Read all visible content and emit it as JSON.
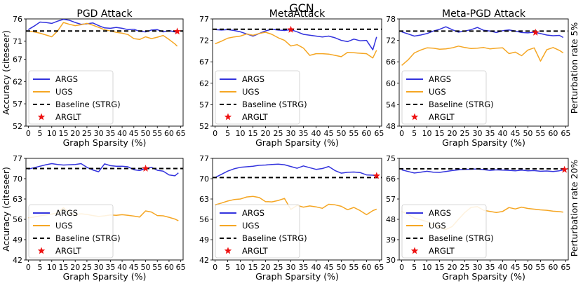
{
  "main_title": "GCN",
  "colors": {
    "args": "#3333dd",
    "ugs": "#f5a623",
    "baseline": "#000000",
    "arglt": "#ee1111"
  },
  "legend": [
    "ARGS",
    "UGS",
    "Baseline (STRG)",
    "ARGLT"
  ],
  "row_labels": [
    "Perturbation rate 5%",
    "Perturbation rate 20%"
  ],
  "chart_data": [
    {
      "type": "line",
      "row": 0,
      "col": 0,
      "title": "PGD Attack",
      "xlabel": "Graph Sparsity (%)",
      "ylabel": "Accuracy (citeseer)",
      "xlim": [
        0,
        65
      ],
      "ylim": [
        52,
        76
      ],
      "xticks": [
        0,
        5,
        10,
        15,
        20,
        25,
        30,
        35,
        40,
        45,
        50,
        55,
        60,
        65
      ],
      "yticks": [
        52,
        57,
        62,
        67,
        71,
        76
      ],
      "baseline": 73.3,
      "arglt": [
        63.5,
        73.2
      ],
      "series": [
        {
          "name": "ARGS",
          "x": [
            0,
            2.5,
            5,
            7.5,
            10,
            12.5,
            15,
            17.5,
            20,
            22.5,
            25,
            27.5,
            30,
            32.5,
            35,
            37.5,
            40,
            42.5,
            45,
            47.5,
            50,
            52.5,
            55,
            57.5,
            60,
            62.5,
            63.5
          ],
          "y": [
            73.6,
            74.4,
            75.3,
            75.2,
            75.0,
            75.5,
            75.9,
            75.7,
            75.2,
            74.8,
            74.9,
            75.1,
            74.5,
            74.0,
            73.9,
            74.1,
            73.9,
            73.6,
            73.7,
            73.2,
            73.1,
            73.5,
            73.6,
            73.1,
            73.4,
            73.1,
            73.2
          ]
        },
        {
          "name": "UGS",
          "x": [
            0,
            2.5,
            5,
            7.5,
            10,
            12.5,
            15,
            17.5,
            20,
            22.5,
            25,
            27.5,
            30,
            32.5,
            35,
            37.5,
            40,
            42.5,
            45,
            47.5,
            50,
            52.5,
            55,
            57.5,
            60,
            62.5,
            63.5
          ],
          "y": [
            73.3,
            73.1,
            72.8,
            72.4,
            72.0,
            73.3,
            75.2,
            74.8,
            74.5,
            74.7,
            75.0,
            74.6,
            74.1,
            73.6,
            73.3,
            73.0,
            72.8,
            72.5,
            71.6,
            71.4,
            72.0,
            71.6,
            71.9,
            72.3,
            71.4,
            70.4,
            69.9
          ]
        }
      ]
    },
    {
      "type": "line",
      "row": 0,
      "col": 1,
      "title": "MetaAttack",
      "xlabel": "Graph Sparsity (%)",
      "ylabel": "",
      "xlim": [
        0,
        65
      ],
      "ylim": [
        52,
        77
      ],
      "xticks": [
        0,
        5,
        10,
        15,
        20,
        25,
        30,
        35,
        40,
        45,
        50,
        55,
        60,
        65
      ],
      "yticks": [
        52,
        57,
        62,
        67,
        72,
        77
      ],
      "baseline": 74.6,
      "arglt": [
        30,
        74.5
      ],
      "series": [
        {
          "name": "ARGS",
          "x": [
            0,
            2.5,
            5,
            7.5,
            10,
            12.5,
            15,
            17.5,
            20,
            22.5,
            25,
            27.5,
            30,
            32.5,
            35,
            37.5,
            40,
            42.5,
            45,
            47.5,
            50,
            52.5,
            55,
            57.5,
            60,
            62.5,
            64
          ],
          "y": [
            74.5,
            74.4,
            74.5,
            74.3,
            74.0,
            73.5,
            73.0,
            73.6,
            74.2,
            74.6,
            74.4,
            74.3,
            74.5,
            74.0,
            73.4,
            73.2,
            73.0,
            72.8,
            73.0,
            72.6,
            72.0,
            71.7,
            72.3,
            71.9,
            72.0,
            69.8,
            72.8
          ]
        },
        {
          "name": "UGS",
          "x": [
            0,
            2.5,
            5,
            7.5,
            10,
            12.5,
            15,
            17.5,
            20,
            22.5,
            25,
            27.5,
            30,
            32.5,
            35,
            37.5,
            40,
            42.5,
            45,
            47.5,
            50,
            52.5,
            55,
            57.5,
            60,
            62.5,
            64
          ],
          "y": [
            71.2,
            71.8,
            72.5,
            72.8,
            73.0,
            73.5,
            73.2,
            73.6,
            73.9,
            73.4,
            72.6,
            72.0,
            70.7,
            71.0,
            70.2,
            68.5,
            68.9,
            68.9,
            68.8,
            68.5,
            68.2,
            69.2,
            69.1,
            69.0,
            68.9,
            67.9,
            69.7
          ]
        }
      ]
    },
    {
      "type": "line",
      "row": 0,
      "col": 2,
      "title": "Meta-PGD Attack",
      "xlabel": "Graph Sparsity (%)",
      "ylabel": "",
      "xlim": [
        0,
        65
      ],
      "ylim": [
        48,
        78
      ],
      "xticks": [
        0,
        5,
        10,
        15,
        20,
        25,
        30,
        35,
        40,
        45,
        50,
        55,
        60,
        65
      ],
      "yticks": [
        48,
        54,
        60,
        66,
        72,
        78
      ],
      "baseline": 74.6,
      "arglt": [
        53,
        74.2
      ],
      "series": [
        {
          "name": "ARGS",
          "x": [
            0,
            2.5,
            5,
            7.5,
            10,
            12.5,
            15,
            17.5,
            20,
            22.5,
            25,
            27.5,
            30,
            32.5,
            35,
            37.5,
            40,
            42.5,
            45,
            47.5,
            50,
            52.5,
            55,
            57.5,
            60,
            62.5,
            64
          ],
          "y": [
            74.4,
            73.8,
            73.2,
            73.5,
            73.9,
            74.6,
            75.1,
            75.8,
            75.0,
            74.3,
            74.6,
            75.0,
            75.6,
            74.8,
            74.6,
            74.2,
            74.7,
            74.9,
            74.6,
            74.2,
            74.1,
            74.3,
            73.9,
            73.5,
            73.3,
            73.4,
            72.8
          ]
        },
        {
          "name": "UGS",
          "x": [
            0,
            2.5,
            5,
            7.5,
            10,
            12.5,
            15,
            17.5,
            20,
            22.5,
            25,
            27.5,
            30,
            32.5,
            35,
            37.5,
            40,
            42.5,
            45,
            47.5,
            50,
            52.5,
            55,
            57.5,
            60,
            62.5,
            64
          ],
          "y": [
            65.0,
            66.5,
            68.5,
            69.3,
            69.9,
            69.8,
            69.5,
            69.6,
            69.9,
            70.4,
            70.0,
            69.7,
            69.8,
            70.0,
            69.6,
            69.8,
            69.9,
            68.3,
            68.7,
            67.7,
            69.3,
            69.9,
            66.2,
            69.4,
            70.0,
            69.2,
            68.5
          ]
        }
      ]
    },
    {
      "type": "line",
      "row": 1,
      "col": 0,
      "title": "",
      "xlabel": "Graph Sparsity (%)",
      "ylabel": "Accuracy (citeseer)",
      "xlim": [
        0,
        65
      ],
      "ylim": [
        42,
        77
      ],
      "xticks": [
        0,
        5,
        10,
        15,
        20,
        25,
        30,
        35,
        40,
        45,
        50,
        55,
        60,
        65
      ],
      "yticks": [
        42,
        49,
        56,
        63,
        70,
        77
      ],
      "baseline": 73.5,
      "arglt": [
        50,
        73.5
      ],
      "series": [
        {
          "name": "ARGS",
          "x": [
            0,
            2.5,
            5,
            7.5,
            10,
            12.5,
            15,
            17.5,
            20,
            22.5,
            25,
            27.5,
            30,
            32.5,
            35,
            37.5,
            40,
            42.5,
            45,
            47.5,
            50,
            52.5,
            55,
            57.5,
            60,
            62.5,
            64
          ],
          "y": [
            73.3,
            73.8,
            74.3,
            74.8,
            75.2,
            74.9,
            74.7,
            74.8,
            74.9,
            75.2,
            73.9,
            73.0,
            72.4,
            75.1,
            74.5,
            74.3,
            74.3,
            74.1,
            73.1,
            72.8,
            73.5,
            73.9,
            72.9,
            72.6,
            71.3,
            71.0,
            72.0
          ]
        },
        {
          "name": "UGS",
          "x": [
            0,
            2.5,
            5,
            7.5,
            10,
            12.5,
            15,
            17.5,
            20,
            22.5,
            25,
            27.5,
            30,
            32.5,
            35,
            37.5,
            40,
            42.5,
            45,
            47.5,
            50,
            52.5,
            55,
            57.5,
            60,
            62.5,
            64
          ],
          "y": [
            56.5,
            56.8,
            57.2,
            57.5,
            57.8,
            58.2,
            60.0,
            58.1,
            57.6,
            57.9,
            57.7,
            57.3,
            57.0,
            57.2,
            57.5,
            57.4,
            57.6,
            57.4,
            57.1,
            56.8,
            58.9,
            58.5,
            57.3,
            57.2,
            56.7,
            56.1,
            55.5
          ]
        }
      ]
    },
    {
      "type": "line",
      "row": 1,
      "col": 1,
      "title": "",
      "xlabel": "Graph Sparsity (%)",
      "ylabel": "",
      "xlim": [
        0,
        65
      ],
      "ylim": [
        42,
        77
      ],
      "xticks": [
        0,
        5,
        10,
        15,
        20,
        25,
        30,
        35,
        40,
        45,
        50,
        55,
        60,
        65
      ],
      "yticks": [
        42,
        49,
        56,
        63,
        70,
        77
      ],
      "baseline": 70.4,
      "arglt": [
        64,
        71.0
      ],
      "series": [
        {
          "name": "ARGS",
          "x": [
            0,
            2.5,
            5,
            7.5,
            10,
            12.5,
            15,
            17.5,
            20,
            22.5,
            25,
            27.5,
            30,
            32.5,
            35,
            37.5,
            40,
            42.5,
            45,
            47.5,
            50,
            52.5,
            55,
            57.5,
            60,
            62.5,
            64
          ],
          "y": [
            70.4,
            71.5,
            72.6,
            73.4,
            73.9,
            74.1,
            74.3,
            74.6,
            74.7,
            74.9,
            75.0,
            74.8,
            74.2,
            73.6,
            74.4,
            73.8,
            73.2,
            73.5,
            74.2,
            72.8,
            71.9,
            72.2,
            72.3,
            72.1,
            71.3,
            71.2,
            71.0
          ]
        },
        {
          "name": "UGS",
          "x": [
            0,
            2.5,
            5,
            7.5,
            10,
            12.5,
            15,
            17.5,
            20,
            22.5,
            25,
            27.5,
            30,
            32.5,
            35,
            37.5,
            40,
            42.5,
            45,
            47.5,
            50,
            52.5,
            55,
            57.5,
            60,
            62.5,
            64
          ],
          "y": [
            61.0,
            61.6,
            62.3,
            62.8,
            63.0,
            63.7,
            63.9,
            63.5,
            62.1,
            62.0,
            62.5,
            63.2,
            59.4,
            60.8,
            60.2,
            60.6,
            60.3,
            59.8,
            61.2,
            61.0,
            60.5,
            59.3,
            60.1,
            59.0,
            57.6,
            59.0,
            59.5
          ]
        }
      ]
    },
    {
      "type": "line",
      "row": 1,
      "col": 2,
      "title": "",
      "xlabel": "Graph Sparsity (%)",
      "ylabel": "",
      "xlim": [
        0,
        65
      ],
      "ylim": [
        30,
        75
      ],
      "xticks": [
        0,
        5,
        10,
        15,
        20,
        25,
        30,
        35,
        40,
        45,
        50,
        55,
        60,
        65
      ],
      "yticks": [
        30,
        39,
        48,
        57,
        66,
        75
      ],
      "baseline": 70.4,
      "arglt": [
        64.5,
        70.0
      ],
      "series": [
        {
          "name": "ARGS",
          "x": [
            0,
            2.5,
            5,
            7.5,
            10,
            12.5,
            15,
            17.5,
            20,
            22.5,
            25,
            27.5,
            30,
            32.5,
            35,
            37.5,
            40,
            42.5,
            45,
            47.5,
            50,
            52.5,
            55,
            57.5,
            60,
            62.5,
            64
          ],
          "y": [
            69.9,
            69.2,
            68.5,
            68.9,
            69.3,
            68.9,
            68.8,
            69.2,
            69.6,
            69.9,
            70.1,
            70.2,
            70.3,
            70.0,
            69.7,
            69.9,
            69.8,
            69.7,
            69.5,
            69.8,
            69.5,
            69.6,
            69.3,
            69.4,
            69.2,
            69.5,
            69.9
          ]
        },
        {
          "name": "UGS",
          "x": [
            0,
            2.5,
            5,
            7.5,
            10,
            12.5,
            15,
            17.5,
            20,
            22.5,
            25,
            27.5,
            30,
            32.5,
            35,
            37.5,
            40,
            42.5,
            45,
            47.5,
            50,
            52.5,
            55,
            57.5,
            60,
            62.5,
            64
          ],
          "y": [
            51.5,
            50.2,
            48.6,
            47.8,
            47.0,
            45.5,
            44.5,
            43.5,
            44.8,
            48.0,
            51.0,
            53.3,
            53.6,
            52.0,
            51.5,
            51.0,
            51.5,
            53.2,
            52.6,
            53.4,
            52.8,
            52.5,
            52.2,
            52.0,
            51.6,
            51.4,
            51.2
          ]
        }
      ]
    }
  ]
}
